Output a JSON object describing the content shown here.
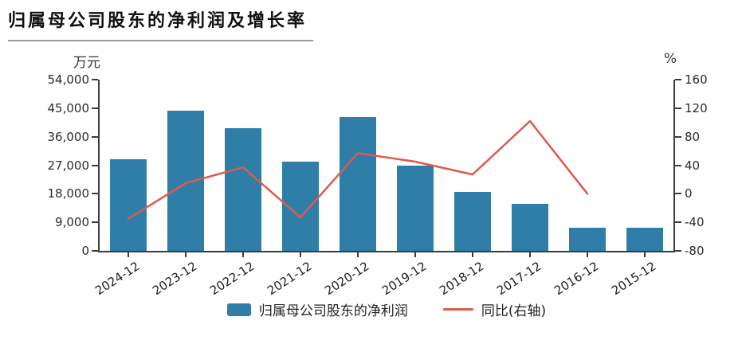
{
  "title": "归属母公司股东的净利润及增长率",
  "chart_data": {
    "type": "bar",
    "subtype": "bar-line-combo",
    "title": "归属母公司股东的净利润及增长率",
    "categories": [
      "2024-12",
      "2023-12",
      "2022-12",
      "2021-12",
      "2020-12",
      "2019-12",
      "2018-12",
      "2017-12",
      "2016-12",
      "2015-12"
    ],
    "series": [
      {
        "name": "归属母公司股东的净利润",
        "type": "bar",
        "axis": "left",
        "color": "#2f7ea7",
        "values": [
          28800,
          44300,
          38600,
          28200,
          42100,
          26900,
          18600,
          14700,
          7300,
          7300
        ]
      },
      {
        "name": "同比(右轴)",
        "type": "line",
        "axis": "right",
        "color": "#dd5a4d",
        "values": [
          -35,
          15,
          37,
          -33,
          57,
          45,
          27,
          102,
          0,
          null
        ]
      }
    ],
    "left_axis": {
      "label": "万元",
      "min": 0,
      "max": 54000,
      "ticks": [
        54000,
        45000,
        36000,
        27000,
        18000,
        9000,
        0
      ],
      "tick_labels": [
        "54,000",
        "45,000",
        "36,000",
        "27,000",
        "18,000",
        "9,000",
        "0"
      ]
    },
    "right_axis": {
      "label": "%",
      "min": -80,
      "max": 160,
      "ticks": [
        160,
        120,
        80,
        40,
        0,
        -40,
        -80
      ],
      "tick_labels": [
        "160",
        "120",
        "80",
        "40",
        "0",
        "-40",
        "-80"
      ]
    },
    "grid": false,
    "legend_position": "bottom",
    "legend": [
      {
        "label": "归属母公司股东的净利润",
        "swatch": "bar",
        "color": "#2f7ea7"
      },
      {
        "label": "同比(右轴)",
        "swatch": "line",
        "color": "#dd5a4d"
      }
    ]
  },
  "colors": {
    "bar": "#2f7ea7",
    "line": "#dd5a4d",
    "axis": "#3c3c3c",
    "title_underline": "#9c9c9c",
    "text": "#222222",
    "background": "#ffffff"
  }
}
